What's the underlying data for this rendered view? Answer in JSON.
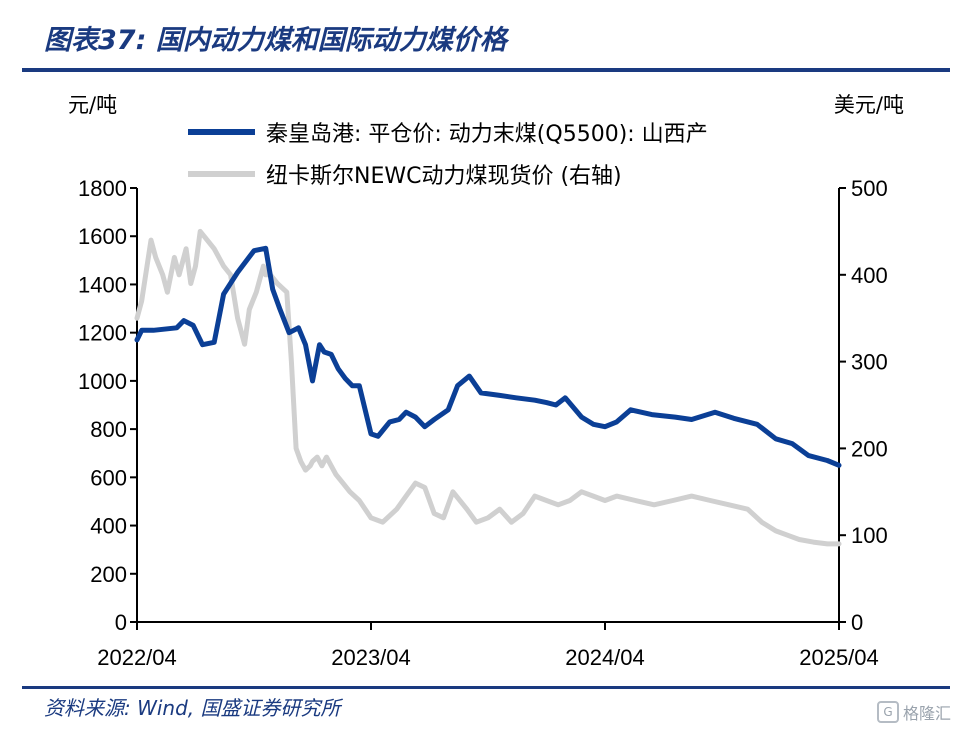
{
  "header": {
    "title": "图表37:  国内动力煤和国际动力煤价格"
  },
  "footer": {
    "source": "资料来源:  Wind, 国盛证券研究所",
    "watermark": "格隆汇"
  },
  "colors": {
    "brand": "#1a3a80",
    "series_cn": "#0b3f96",
    "series_intl": "#d0d0d0"
  },
  "chart_data": {
    "type": "line",
    "title": "国内动力煤和国际动力煤价格",
    "xlabel": "",
    "y_left_label": "元/吨",
    "y_right_label": "美元/吨",
    "x_range": [
      2022.25,
      2025.25
    ],
    "x_ticks": [
      {
        "label": "2022/04",
        "x": 2022.25
      },
      {
        "label": "2023/04",
        "x": 2023.25
      },
      {
        "label": "2024/04",
        "x": 2024.25
      },
      {
        "label": "2025/04",
        "x": 2025.25
      }
    ],
    "ylim_left": [
      0,
      1800
    ],
    "yticks_left": [
      0,
      200,
      400,
      600,
      800,
      1000,
      1200,
      1400,
      1600,
      1800
    ],
    "ylim_right": [
      0,
      500
    ],
    "yticks_right": [
      0,
      100,
      200,
      300,
      400,
      500
    ],
    "legend_position": "top-center",
    "series": [
      {
        "name": "秦皇岛港: 平仓价: 动力末煤(Q5500): 山西产",
        "axis": "left",
        "x": [
          2022.25,
          2022.27,
          2022.32,
          2022.42,
          2022.45,
          2022.49,
          2022.53,
          2022.58,
          2022.62,
          2022.68,
          2022.75,
          2022.8,
          2022.83,
          2022.86,
          2022.9,
          2022.94,
          2022.97,
          2023.0,
          2023.03,
          2023.05,
          2023.08,
          2023.11,
          2023.14,
          2023.17,
          2023.2,
          2023.25,
          2023.28,
          2023.33,
          2023.37,
          2023.4,
          2023.44,
          2023.48,
          2023.52,
          2023.58,
          2023.62,
          2023.67,
          2023.72,
          2023.8,
          2023.87,
          2023.95,
          2024.0,
          2024.04,
          2024.08,
          2024.15,
          2024.2,
          2024.25,
          2024.3,
          2024.36,
          2024.45,
          2024.55,
          2024.62,
          2024.72,
          2024.8,
          2024.9,
          2024.98,
          2025.05,
          2025.12,
          2025.2,
          2025.25
        ],
        "values": [
          1170,
          1210,
          1210,
          1220,
          1250,
          1230,
          1150,
          1160,
          1360,
          1450,
          1540,
          1550,
          1380,
          1300,
          1200,
          1220,
          1150,
          1000,
          1150,
          1120,
          1110,
          1050,
          1010,
          980,
          980,
          780,
          770,
          830,
          840,
          870,
          850,
          810,
          840,
          880,
          980,
          1020,
          950,
          940,
          930,
          920,
          910,
          900,
          930,
          850,
          820,
          810,
          830,
          880,
          860,
          850,
          840,
          870,
          845,
          820,
          760,
          740,
          690,
          670,
          650
        ]
      },
      {
        "name": "纽卡斯尔NEWC动力煤现货价 (右轴)",
        "axis": "right",
        "x": [
          2022.25,
          2022.27,
          2022.31,
          2022.33,
          2022.36,
          2022.38,
          2022.41,
          2022.43,
          2022.46,
          2022.48,
          2022.5,
          2022.52,
          2022.55,
          2022.58,
          2022.6,
          2022.62,
          2022.65,
          2022.68,
          2022.71,
          2022.73,
          2022.76,
          2022.79,
          2022.8,
          2022.82,
          2022.85,
          2022.89,
          2022.91,
          2022.93,
          2022.95,
          2022.97,
          2022.99,
          2023.0,
          2023.02,
          2023.04,
          2023.06,
          2023.08,
          2023.1,
          2023.13,
          2023.16,
          2023.2,
          2023.25,
          2023.3,
          2023.36,
          2023.4,
          2023.44,
          2023.48,
          2023.52,
          2023.56,
          2023.6,
          2023.66,
          2023.7,
          2023.75,
          2023.8,
          2023.85,
          2023.9,
          2023.95,
          2024.0,
          2024.05,
          2024.1,
          2024.15,
          2024.2,
          2024.25,
          2024.3,
          2024.38,
          2024.46,
          2024.54,
          2024.62,
          2024.7,
          2024.78,
          2024.86,
          2024.92,
          2024.98,
          2025.03,
          2025.08,
          2025.14,
          2025.2,
          2025.25
        ],
        "values": [
          350,
          370,
          440,
          420,
          400,
          380,
          420,
          400,
          430,
          390,
          410,
          450,
          440,
          430,
          420,
          410,
          400,
          350,
          320,
          360,
          380,
          410,
          400,
          400,
          390,
          380,
          300,
          200,
          185,
          175,
          180,
          185,
          190,
          180,
          190,
          180,
          170,
          160,
          150,
          140,
          120,
          115,
          130,
          145,
          160,
          155,
          125,
          120,
          150,
          130,
          115,
          120,
          130,
          115,
          125,
          145,
          140,
          135,
          140,
          150,
          145,
          140,
          145,
          140,
          135,
          140,
          145,
          140,
          135,
          130,
          115,
          105,
          100,
          95,
          92,
          90,
          90
        ]
      }
    ]
  }
}
